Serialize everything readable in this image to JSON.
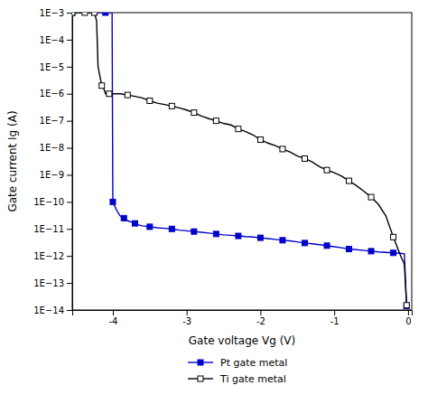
{
  "chart_data": {
    "type": "line",
    "xlabel": "Gate voltage Vg (V)",
    "ylabel": "Gate current Ig (A)",
    "log": "y",
    "grid": false,
    "legend": "bottom",
    "xlim": [
      -4.55,
      0.05
    ],
    "xticks": [
      -4,
      -3,
      -2,
      -1,
      0
    ],
    "ylim": [
      1e-14,
      0.001
    ],
    "yticks": [
      {
        "value": 1e-14,
        "label": "1E−14"
      },
      {
        "value": 1e-13,
        "label": "1E−13"
      },
      {
        "value": 1e-12,
        "label": "1E−12"
      },
      {
        "value": 1e-11,
        "label": "1E−11"
      },
      {
        "value": 1e-10,
        "label": "1E−10"
      },
      {
        "value": 1e-09,
        "label": "1E−9"
      },
      {
        "value": 1e-08,
        "label": "1E−8"
      },
      {
        "value": 1e-07,
        "label": "1E−7"
      },
      {
        "value": 1e-06,
        "label": "1E−6"
      },
      {
        "value": 1e-05,
        "label": "1E−5"
      },
      {
        "value": 0.0001,
        "label": "1E−4"
      },
      {
        "value": 0.001,
        "label": "1E−3"
      }
    ],
    "series": [
      {
        "name": "Pt gate metal",
        "color": "#0000cc",
        "marker": "square",
        "x": [
          -4.55,
          -4.4,
          -4.2,
          -4.1,
          -4.05,
          -4.01,
          -4.0,
          -3.95,
          -3.9,
          -3.85,
          -3.8,
          -3.75,
          -3.7,
          -3.65,
          -3.6,
          -3.5,
          -3.4,
          -3.3,
          -3.2,
          -3.1,
          -3.0,
          -2.9,
          -2.8,
          -2.7,
          -2.6,
          -2.5,
          -2.4,
          -2.3,
          -2.2,
          -2.1,
          -2.0,
          -1.9,
          -1.8,
          -1.7,
          -1.6,
          -1.5,
          -1.4,
          -1.3,
          -1.2,
          -1.1,
          -1.0,
          -0.9,
          -0.8,
          -0.7,
          -0.6,
          -0.5,
          -0.4,
          -0.3,
          -0.2,
          -0.1,
          -0.05,
          -0.02
        ],
        "values": [
          0.001,
          0.001,
          0.001,
          0.001,
          0.001,
          0.001,
          1e-10,
          5e-11,
          3e-11,
          2.5e-11,
          2e-11,
          1.8e-11,
          1.6e-11,
          1.4e-11,
          1.3e-11,
          1.2e-11,
          1.1e-11,
          1.05e-11,
          1e-11,
          9e-12,
          8.5e-12,
          8e-12,
          7.5e-12,
          7e-12,
          6.5e-12,
          6e-12,
          5.8e-12,
          5.5e-12,
          5.2e-12,
          5e-12,
          4.7e-12,
          4.4e-12,
          4.1e-12,
          3.8e-12,
          3.6e-12,
          3.3e-12,
          3e-12,
          2.8e-12,
          2.6e-12,
          2.4e-12,
          2.2e-12,
          2e-12,
          1.8e-12,
          1.7e-12,
          1.6e-12,
          1.5e-12,
          1.4e-12,
          1.35e-12,
          1.3e-12,
          1.25e-12,
          1.2e-12,
          1.4e-14
        ]
      },
      {
        "name": "Ti gate metal",
        "color": "#000000",
        "marker": "open-square",
        "x": [
          -4.55,
          -4.45,
          -4.4,
          -4.38,
          -4.35,
          -4.3,
          -4.25,
          -4.22,
          -4.2,
          -4.15,
          -4.12,
          -4.1,
          -4.05,
          -4.0,
          -3.9,
          -3.8,
          -3.7,
          -3.6,
          -3.5,
          -3.4,
          -3.3,
          -3.2,
          -3.1,
          -3.0,
          -2.9,
          -2.8,
          -2.7,
          -2.6,
          -2.5,
          -2.4,
          -2.3,
          -2.2,
          -2.1,
          -2.0,
          -1.9,
          -1.8,
          -1.7,
          -1.6,
          -1.5,
          -1.4,
          -1.3,
          -1.2,
          -1.1,
          -1.0,
          -0.9,
          -0.8,
          -0.7,
          -0.6,
          -0.5,
          -0.4,
          -0.3,
          -0.2,
          -0.1,
          -0.05,
          -0.02
        ],
        "values": [
          0.001,
          0.001,
          0.001,
          0.001,
          0.001,
          0.001,
          0.001,
          0.0005,
          1e-05,
          2e-06,
          1.5e-06,
          1e-06,
          1e-06,
          1e-06,
          1e-06,
          9e-07,
          8e-07,
          7e-07,
          5.5e-07,
          4.5e-07,
          4e-07,
          3.5e-07,
          3e-07,
          2.5e-07,
          2e-07,
          1.5e-07,
          1.2e-07,
          1e-07,
          8e-08,
          7e-08,
          5e-08,
          4e-08,
          3e-08,
          2e-08,
          1.5e-08,
          1.2e-08,
          9e-09,
          7e-09,
          5e-09,
          4e-09,
          3e-09,
          2e-09,
          1.5e-09,
          1.2e-09,
          9e-10,
          6e-10,
          4e-10,
          2.5e-10,
          1.5e-10,
          8e-11,
          3e-11,
          5e-12,
          1e-12,
          5e-13,
          1.5e-14
        ]
      }
    ]
  }
}
